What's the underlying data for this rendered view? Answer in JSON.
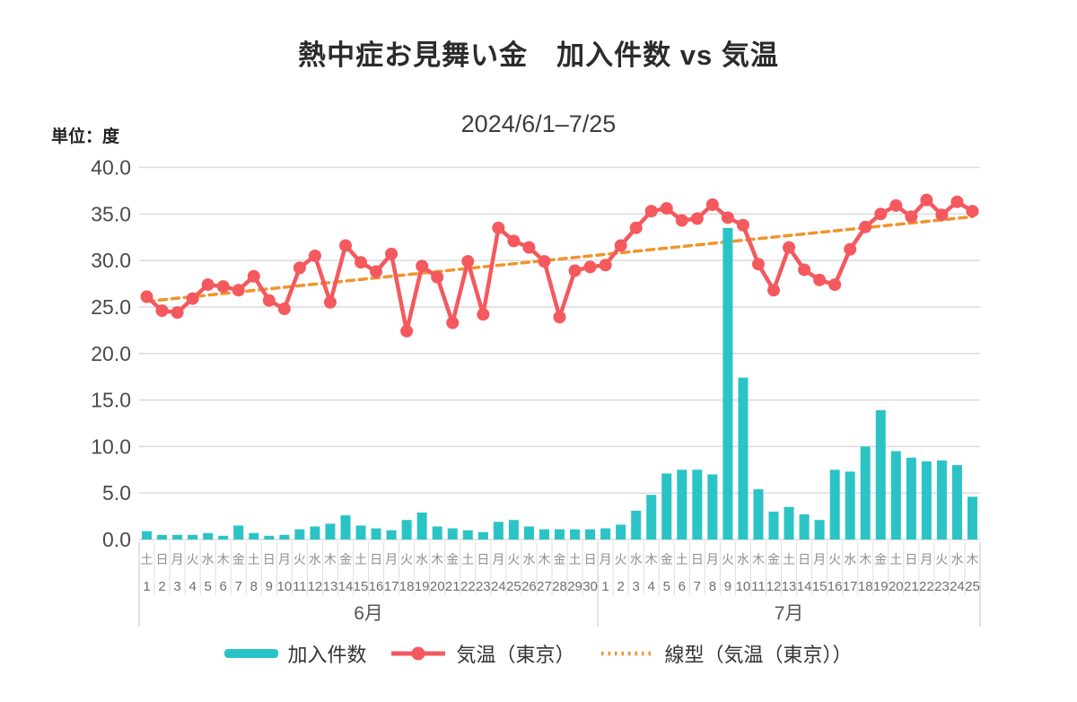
{
  "title": "熱中症お見舞い金　加入件数 vs 気温",
  "subtitle": "2024/6/1–7/25",
  "unit_label": "単位：度",
  "colors": {
    "bar": "#2bc4c6",
    "temp_line": "#f4595e",
    "trend_line": "#f0942d",
    "grid": "#dcdcdc",
    "minor_tick": "#dddddd",
    "separator": "#c6c6c6",
    "title_text": "#2b2b2b",
    "subtitle_text": "#3d3d3d",
    "y_label_text": "#4a4a4a",
    "weekday_text": "#8f8f8f",
    "day_text": "#6e6e6e",
    "month_text": "#555555",
    "legend_text": "#333333"
  },
  "legend": {
    "items": [
      {
        "label": "加入件数",
        "type": "bar"
      },
      {
        "label": "気温（東京）",
        "type": "line"
      },
      {
        "label": "線型（気温（東京））",
        "type": "trend"
      }
    ]
  },
  "chart_data": {
    "type": "combo_bar_line",
    "title": "熱中症お見舞い金　加入件数 vs 気温",
    "subtitle": "2024/6/1–7/25",
    "y_axis": {
      "min": 0,
      "max": 40,
      "tick_step": 5,
      "tick_labels": [
        "40.0",
        "35.0",
        "30.0",
        "25.0",
        "20.0",
        "15.0",
        "10.0",
        "5.0",
        "0.0"
      ],
      "unit": "度"
    },
    "x_axis": {
      "months": [
        {
          "label": "6月",
          "days": 30
        },
        {
          "label": "7月",
          "days": 25
        }
      ],
      "weekdays": [
        "土",
        "日",
        "月",
        "火",
        "水",
        "木",
        "金",
        "土",
        "日",
        "月",
        "火",
        "水",
        "木",
        "金",
        "土",
        "日",
        "月",
        "火",
        "水",
        "木",
        "金",
        "土",
        "日",
        "月",
        "火",
        "水",
        "木",
        "金",
        "土",
        "日",
        "月",
        "火",
        "水",
        "木",
        "金",
        "土",
        "日",
        "月",
        "火",
        "水",
        "木",
        "金",
        "土",
        "日",
        "月",
        "火",
        "水",
        "木",
        "金",
        "土",
        "日",
        "月",
        "火",
        "水",
        "木"
      ],
      "day_numbers": [
        1,
        2,
        3,
        4,
        5,
        6,
        7,
        8,
        9,
        10,
        11,
        12,
        13,
        14,
        15,
        16,
        17,
        18,
        19,
        20,
        21,
        22,
        23,
        24,
        25,
        26,
        27,
        28,
        29,
        30,
        1,
        2,
        3,
        4,
        5,
        6,
        7,
        8,
        9,
        10,
        11,
        12,
        13,
        14,
        15,
        16,
        17,
        18,
        19,
        20,
        21,
        22,
        23,
        24,
        25
      ]
    },
    "series": [
      {
        "name": "加入件数",
        "type": "bar",
        "values": [
          0.9,
          0.5,
          0.5,
          0.5,
          0.7,
          0.4,
          1.5,
          0.7,
          0.4,
          0.5,
          1.1,
          1.4,
          1.7,
          2.6,
          1.5,
          1.2,
          1.0,
          2.1,
          2.9,
          1.4,
          1.2,
          1.0,
          0.8,
          1.9,
          2.1,
          1.4,
          1.1,
          1.1,
          1.1,
          1.1,
          1.2,
          1.6,
          3.1,
          4.8,
          7.1,
          7.5,
          7.5,
          7.0,
          33.5,
          17.4,
          5.4,
          3.0,
          3.5,
          2.7,
          2.1,
          7.5,
          7.3,
          10.0,
          13.9,
          9.5,
          8.8,
          8.4,
          8.5,
          8.0,
          4.6
        ]
      },
      {
        "name": "気温（東京）",
        "type": "line",
        "values": [
          26.1,
          24.6,
          24.4,
          25.9,
          27.4,
          27.2,
          26.8,
          28.3,
          25.7,
          24.8,
          29.2,
          30.5,
          25.5,
          31.6,
          29.8,
          28.8,
          30.7,
          22.4,
          29.4,
          28.2,
          23.3,
          29.9,
          24.2,
          33.5,
          32.1,
          31.4,
          29.9,
          23.9,
          28.9,
          29.3,
          29.5,
          31.6,
          33.5,
          35.3,
          35.6,
          34.3,
          34.5,
          36.0,
          34.6,
          33.8,
          29.6,
          26.8,
          31.4,
          29.0,
          27.9,
          27.4,
          31.2,
          33.6,
          35.0,
          35.9,
          34.7,
          36.5,
          34.9,
          36.3,
          35.3
        ]
      },
      {
        "name": "線型（気温（東京））",
        "type": "trendline",
        "start_value": 25.6,
        "end_value": 34.7
      }
    ]
  }
}
